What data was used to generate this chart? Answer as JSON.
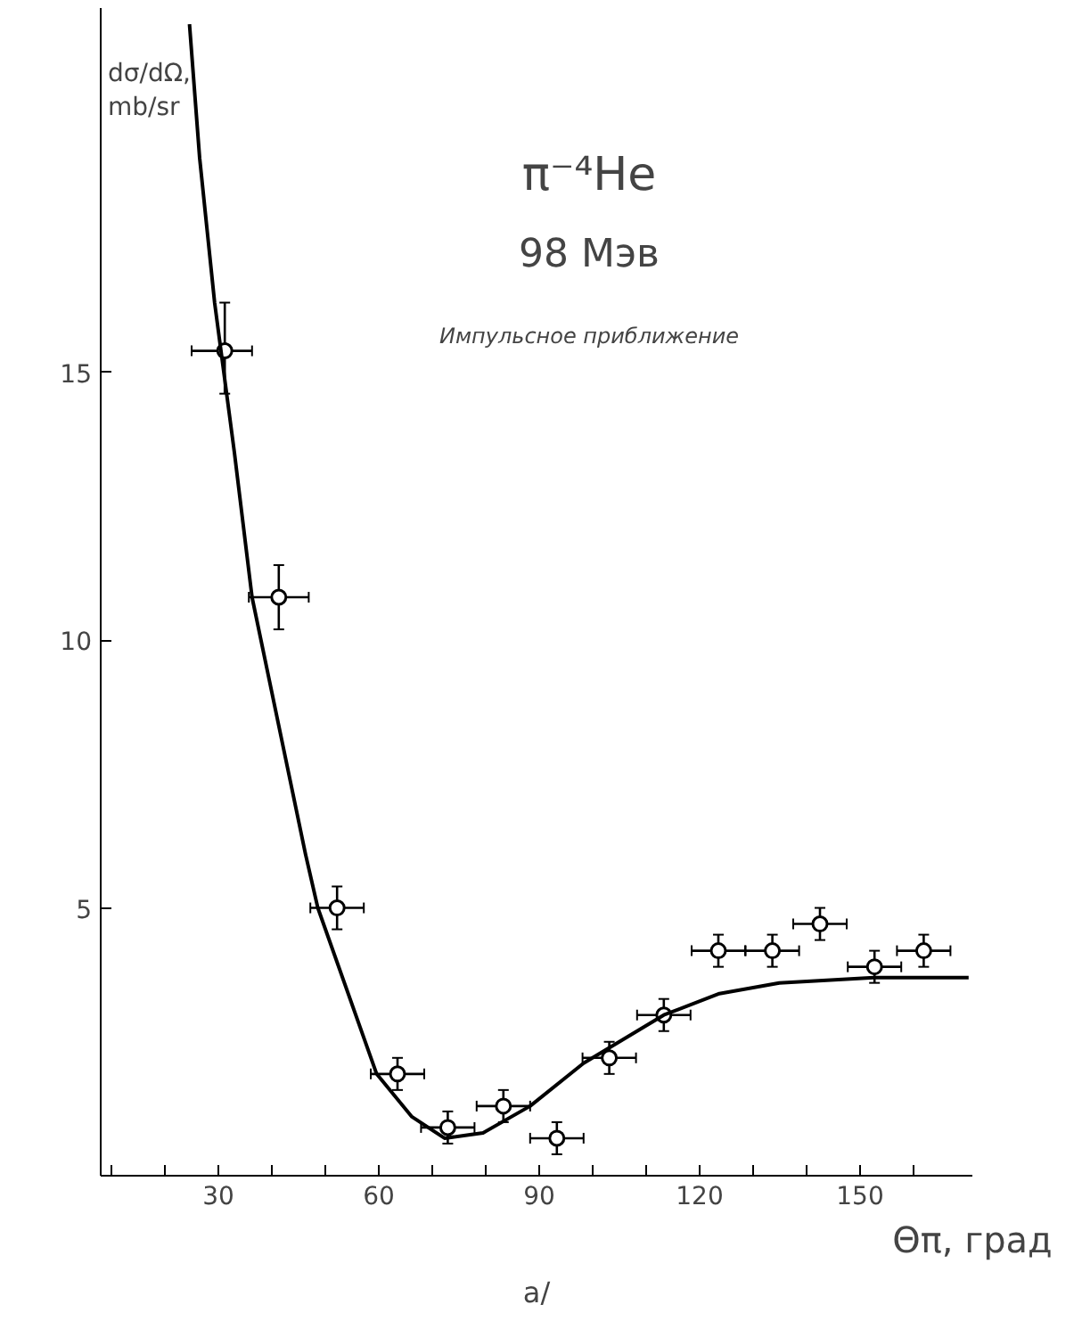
{
  "chart_data": {
    "type": "scatter",
    "xlabel": "Θπ, град",
    "ylabel": "dσ/dΩ, mb/sr",
    "xlim": [
      8,
      171
    ],
    "ylim": [
      0,
      21.8
    ],
    "xticks": [
      {
        "value": 10,
        "label": null
      },
      {
        "value": 20,
        "label": null
      },
      30,
      {
        "value": 40,
        "label": null
      },
      {
        "value": 50,
        "label": null
      },
      60,
      {
        "value": 70,
        "label": null
      },
      {
        "value": 80,
        "label": null
      },
      90,
      {
        "value": 100,
        "label": null
      },
      {
        "value": 110,
        "label": null
      },
      120,
      {
        "value": 130,
        "label": null
      },
      {
        "value": 140,
        "label": null
      },
      150,
      {
        "value": 160,
        "label": null
      }
    ],
    "yticks": [
      5,
      10,
      15
    ],
    "grid": false,
    "marker": "circle",
    "series": [
      {
        "color": "#000000",
        "x": [
          31.2,
          41.3,
          52.2,
          63.5,
          72.9,
          83.3,
          93.3,
          103.1,
          113.3,
          123.5,
          133.6,
          142.5,
          152.7,
          161.9
        ],
        "values": [
          15.4,
          10.8,
          5.0,
          1.9,
          0.9,
          1.3,
          0.7,
          2.2,
          3.0,
          4.2,
          4.2,
          4.7,
          3.9,
          4.2
        ],
        "errors": [
          [
            14.6,
            16.3
          ],
          0.6,
          0.4,
          0.3,
          0.3,
          0.3,
          0.3,
          0.3,
          0.3,
          0.3,
          0.3,
          0.3,
          0.3,
          0.3
        ],
        "xerrors": [
          [
            25.0,
            36.3
          ],
          5.6,
          5,
          5,
          5,
          5,
          5,
          5,
          5,
          5,
          5,
          5,
          5,
          5
        ]
      },
      {
        "type": "line",
        "color": "#000000",
        "line_style": "solid",
        "marker": "none",
        "x": [
          24.6,
          26.5,
          29.3,
          33,
          36.3,
          46.3,
          48.6,
          59.6,
          66.2,
          72.3,
          79.5,
          88.3,
          98.3,
          113.3,
          123.7,
          134.9,
          152.6,
          170.3
        ],
        "values": [
          21.5,
          19,
          16.3,
          13.5,
          10.8,
          6.0,
          5.0,
          1.9,
          1.1,
          0.7,
          0.8,
          1.3,
          2.1,
          3.0,
          3.4,
          3.6,
          3.7,
          3.7
        ]
      }
    ],
    "annotations": [
      "π⁻⁴He",
      "98 Мэв",
      "Импульсное приближение",
      "a/"
    ]
  }
}
